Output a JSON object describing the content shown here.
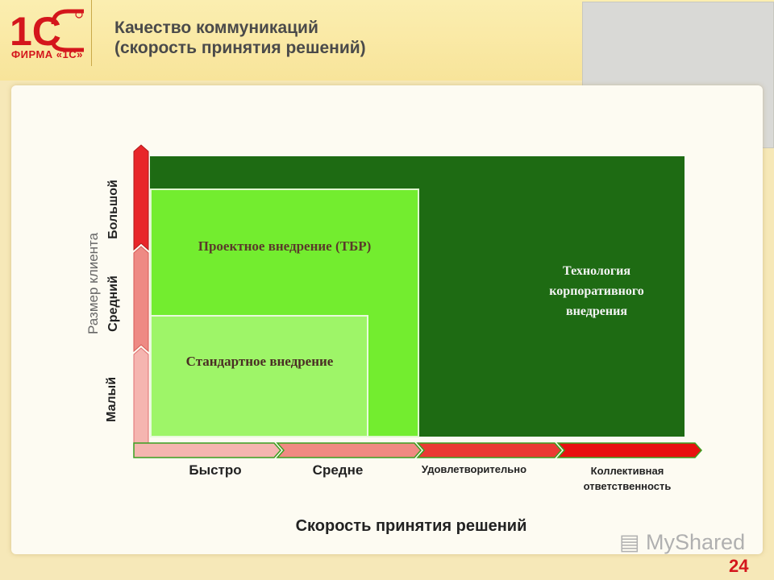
{
  "header": {
    "logo_text": "1С",
    "logo_sub": "ФИРМА «1С»",
    "title_line1": "Качество коммуникаций",
    "title_line2": "(скорость принятия решений)"
  },
  "regions": {
    "technology": [
      "Технология",
      "корпоративного",
      "внедрения"
    ],
    "project": "Проектное внедрение (ТБР)",
    "standard": "Стандартное внедрение"
  },
  "y_axis": {
    "title": "Размер клиента",
    "levels": [
      "Малый",
      "Средний",
      "Большой"
    ]
  },
  "x_axis": {
    "title": "Скорость принятия решений",
    "levels": [
      "Быстро",
      "Средне",
      "Удовлетворительно",
      "Коллективная ответственность"
    ],
    "level_lines": [
      [
        "Быстро"
      ],
      [
        "Средне"
      ],
      [
        "Удовлетворительно"
      ],
      [
        "Коллективная",
        "ответственность"
      ]
    ]
  },
  "colors": {
    "accent": "#d4161c",
    "dark_green": "#1e6b13",
    "light_green": "#73ed2f",
    "pale_green": "#9ef568"
  },
  "watermark": "MyShared",
  "page_number": "24"
}
